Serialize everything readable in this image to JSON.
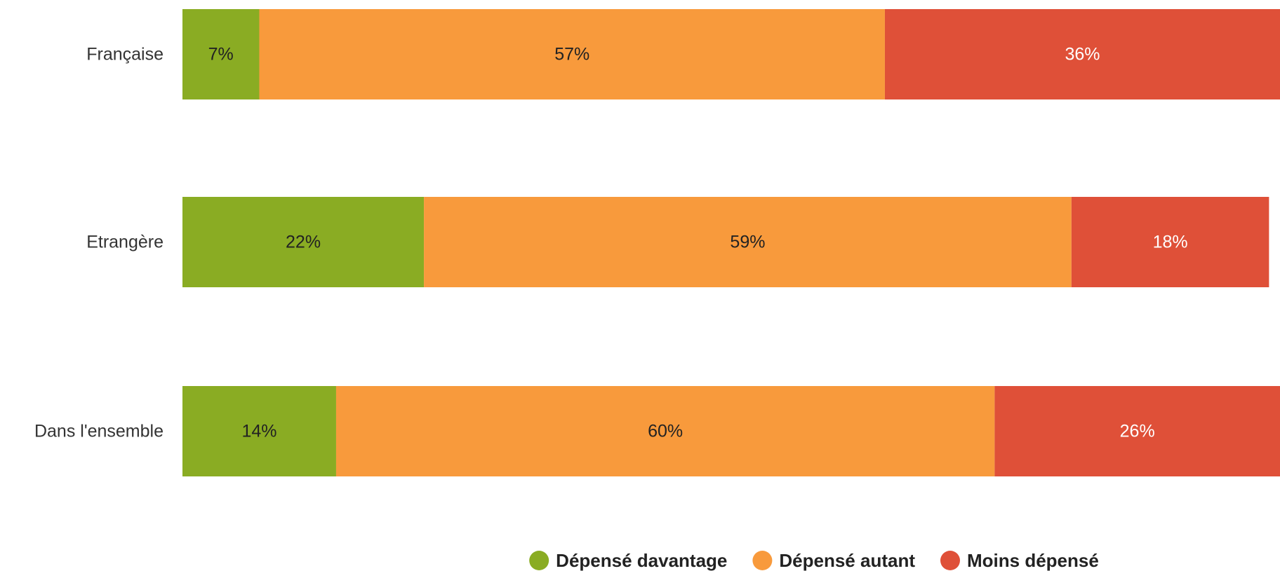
{
  "chart_data": {
    "type": "bar",
    "orientation": "horizontal",
    "stacked": true,
    "title": "",
    "xlabel": "",
    "ylabel": "",
    "xlim": [
      0,
      100
    ],
    "grid": false,
    "legend_position": "bottom",
    "value_suffix": "%",
    "categories": [
      "Française",
      "Etrangère",
      "Dans l'ensemble"
    ],
    "series": [
      {
        "name": "Dépensé davantage",
        "values": [
          7,
          22,
          14
        ],
        "color": "#8aac23",
        "label_color": "#222222"
      },
      {
        "name": "Dépensé autant",
        "values": [
          57,
          59,
          60
        ],
        "color": "#f89a3c",
        "label_color": "#222222"
      },
      {
        "name": "Moins dépensé",
        "values": [
          36,
          18,
          26
        ],
        "color": "#df5038",
        "label_color": "#ffffff"
      }
    ]
  }
}
